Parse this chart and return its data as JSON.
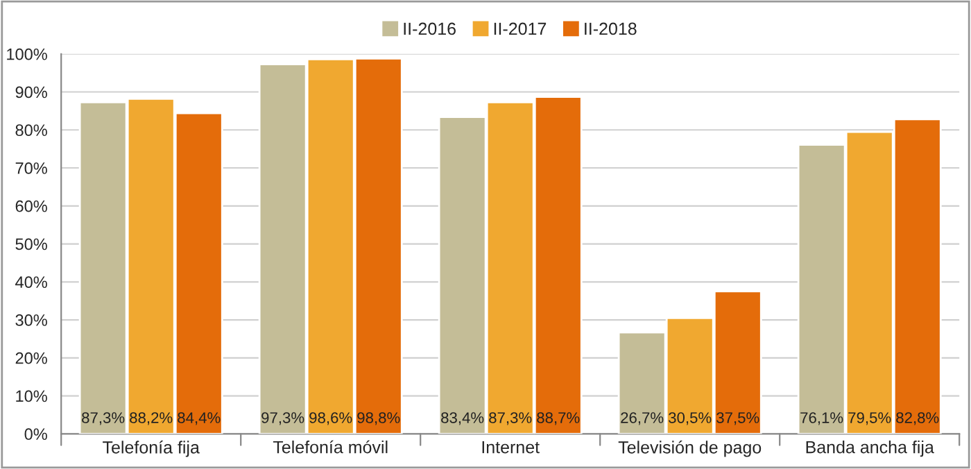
{
  "chart_data": {
    "type": "bar",
    "categories": [
      "Telefonía fija",
      "Telefonía móvil",
      "Internet",
      "Televisión de pago",
      "Banda ancha fija"
    ],
    "series": [
      {
        "name": "II-2016",
        "color": "#c4bd97",
        "values": [
          87.3,
          97.3,
          83.4,
          26.7,
          76.1
        ],
        "value_labels": [
          "87,3%",
          "97,3%",
          "83,4%",
          "26,7%",
          "76,1%"
        ]
      },
      {
        "name": "II-2017",
        "color": "#f0a830",
        "values": [
          88.2,
          98.6,
          87.3,
          30.5,
          79.5
        ],
        "value_labels": [
          "88,2%",
          "98,6%",
          "87,3%",
          "30,5%",
          "79,5%"
        ]
      },
      {
        "name": "II-2018",
        "color": "#e46c0a",
        "values": [
          84.4,
          98.8,
          88.7,
          37.5,
          82.8
        ],
        "value_labels": [
          "84,4%",
          "98,8%",
          "88,7%",
          "37,5%",
          "82,8%"
        ]
      }
    ],
    "ylim": [
      0,
      100
    ],
    "yticks": [
      {
        "value": 0,
        "label": "0%"
      },
      {
        "value": 10,
        "label": "10%"
      },
      {
        "value": 20,
        "label": "20%"
      },
      {
        "value": 30,
        "label": "30%"
      },
      {
        "value": 40,
        "label": "40%"
      },
      {
        "value": 50,
        "label": "50%"
      },
      {
        "value": 60,
        "label": "60%"
      },
      {
        "value": 70,
        "label": "70%"
      },
      {
        "value": 80,
        "label": "80%"
      },
      {
        "value": 90,
        "label": "90%"
      },
      {
        "value": 100,
        "label": "100%"
      }
    ],
    "grid": "y",
    "legend": "top"
  }
}
